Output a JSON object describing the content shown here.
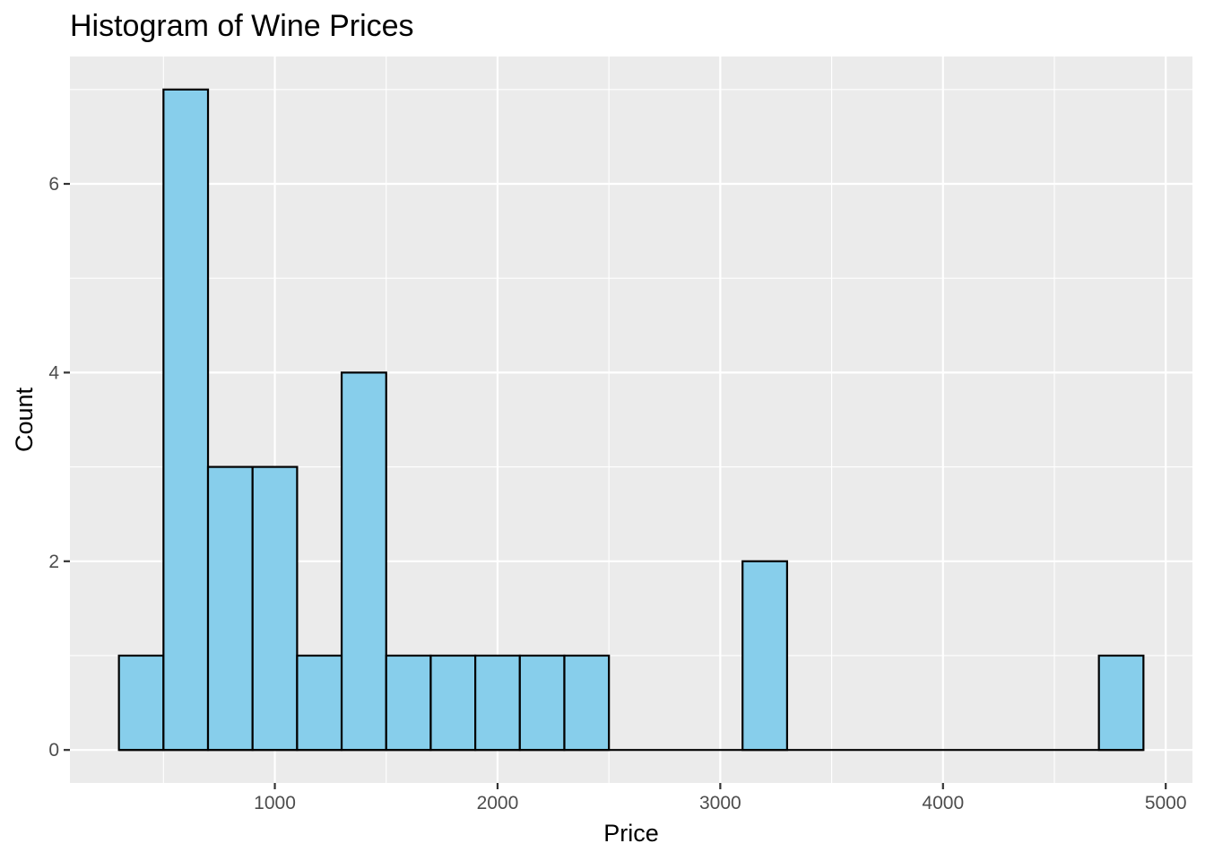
{
  "chart_data": {
    "type": "bar",
    "title": "Histogram of Wine Prices",
    "xlabel": "Price",
    "ylabel": "Count",
    "bin_width": 200,
    "bins": [
      {
        "start": 300,
        "end": 500,
        "count": 1
      },
      {
        "start": 500,
        "end": 700,
        "count": 7
      },
      {
        "start": 700,
        "end": 900,
        "count": 3
      },
      {
        "start": 900,
        "end": 1100,
        "count": 3
      },
      {
        "start": 1100,
        "end": 1300,
        "count": 1
      },
      {
        "start": 1300,
        "end": 1500,
        "count": 4
      },
      {
        "start": 1500,
        "end": 1700,
        "count": 1
      },
      {
        "start": 1700,
        "end": 1900,
        "count": 1
      },
      {
        "start": 1900,
        "end": 2100,
        "count": 1
      },
      {
        "start": 2100,
        "end": 2300,
        "count": 1
      },
      {
        "start": 2300,
        "end": 2500,
        "count": 1
      },
      {
        "start": 2500,
        "end": 2700,
        "count": 0
      },
      {
        "start": 2700,
        "end": 2900,
        "count": 0
      },
      {
        "start": 2900,
        "end": 3100,
        "count": 0
      },
      {
        "start": 3100,
        "end": 3300,
        "count": 2
      },
      {
        "start": 3300,
        "end": 3500,
        "count": 0
      },
      {
        "start": 3500,
        "end": 3700,
        "count": 0
      },
      {
        "start": 3700,
        "end": 3900,
        "count": 0
      },
      {
        "start": 3900,
        "end": 4100,
        "count": 0
      },
      {
        "start": 4100,
        "end": 4300,
        "count": 0
      },
      {
        "start": 4300,
        "end": 4500,
        "count": 0
      },
      {
        "start": 4500,
        "end": 4700,
        "count": 0
      },
      {
        "start": 4700,
        "end": 4900,
        "count": 1
      }
    ],
    "xlim": [
      80,
      5120
    ],
    "ylim": [
      -0.35,
      7.35
    ],
    "x_ticks": [
      1000,
      2000,
      3000,
      4000,
      5000
    ],
    "x_tick_labels": [
      "1000",
      "2000",
      "3000",
      "4000",
      "5000"
    ],
    "y_ticks": [
      0,
      2,
      4,
      6
    ],
    "y_tick_labels": [
      "0",
      "2",
      "4",
      "6"
    ],
    "grid": true,
    "colors": {
      "bar_fill": "#87ceeb",
      "bar_outline": "#000000",
      "panel_background": "#ebebeb",
      "grid_line": "#ffffff"
    }
  }
}
